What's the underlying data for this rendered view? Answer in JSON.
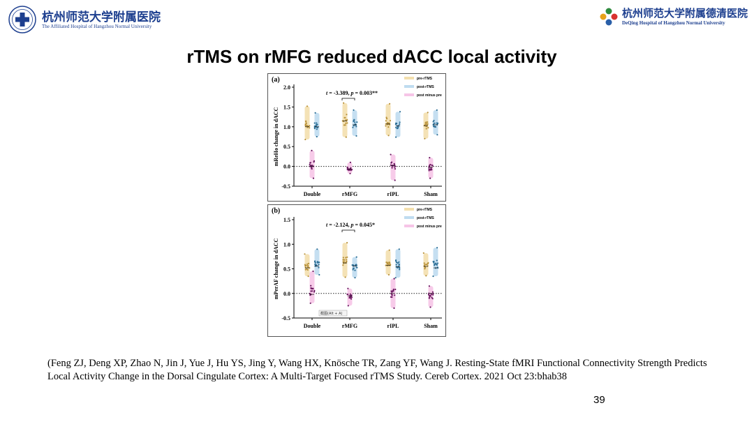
{
  "header": {
    "left_logo": {
      "name_cn": "杭州师范大学附属医院",
      "name_en": "The Affiliated Hospital of Hangzhou Normal University",
      "icon": "hospital-cross-seal-icon",
      "color": "#1d3f8f"
    },
    "right_logo": {
      "name_cn": "杭州师范大学附属德清医院",
      "name_en": "DeQing Hospital of Hangzhou Normal University",
      "icon": "flower-emblem-icon",
      "color": "#1d3f8f"
    }
  },
  "slide": {
    "title": "rTMS on rMFG reduced dACC local activity",
    "citation": "(Feng ZJ, Deng XP, Zhao N, Jin J, Yue J, Hu YS, Jing Y, Wang HX, Knösche TR, Zang YF, Wang J. Resting-State fMRI Functional Connectivity Strength Predicts Local Activity Change in the Dorsal Cingulate Cortex: A Multi-Target Focused rTMS Study. Cereb Cortex. 2021 Oct 23:bhab38",
    "page_number": "39",
    "tooltip": "截图(Alt + A)"
  },
  "colors": {
    "pre": "#b9923a",
    "post": "#2c6f96",
    "diff": "#6b1760",
    "pre_fill": "#f3dfae",
    "post_fill": "#bfdcf0",
    "diff_fill": "#f6c5e7"
  },
  "chart_data": [
    {
      "type": "scatter",
      "panel": "(a)",
      "ylabel": "mReHo change in dACC",
      "categories": [
        "Double",
        "rMFG",
        "rIPL",
        "Sham"
      ],
      "ylim": [
        -0.5,
        2.0
      ],
      "yticks": [
        "2.0",
        "1.5",
        "1.0",
        "0.5",
        "0.0",
        "-0.5"
      ],
      "reference_line": 0,
      "annotation": {
        "t": "-3.389",
        "p": "0.003**",
        "category": "rMFG"
      },
      "legend": [
        "pre-rTMS",
        "post-rTMS",
        "post minus pre"
      ],
      "legend_position": "top-right",
      "series": [
        {
          "name": "pre-rTMS",
          "ranges": [
            [
              0.68,
              1.52
            ],
            [
              0.74,
              1.6
            ],
            [
              0.78,
              1.58
            ],
            [
              0.7,
              1.36
            ]
          ],
          "medians": [
            1.0,
            1.15,
            1.07,
            1.03
          ]
        },
        {
          "name": "post-rTMS",
          "ranges": [
            [
              0.75,
              1.35
            ],
            [
              0.77,
              1.42
            ],
            [
              0.74,
              1.38
            ],
            [
              0.8,
              1.42
            ]
          ],
          "medians": [
            1.0,
            1.05,
            1.02,
            1.05
          ]
        },
        {
          "name": "post minus pre",
          "ranges": [
            [
              -0.3,
              0.4
            ],
            [
              -0.18,
              0.1
            ],
            [
              -0.35,
              0.3
            ],
            [
              -0.3,
              0.22
            ]
          ],
          "medians": [
            0.0,
            -0.07,
            0.02,
            -0.02
          ]
        }
      ]
    },
    {
      "type": "scatter",
      "panel": "(b)",
      "ylabel": "mPerAF change in dACC",
      "categories": [
        "Double",
        "rMFG",
        "rIPL",
        "Sham"
      ],
      "ylim": [
        -0.5,
        1.5
      ],
      "yticks": [
        "1.5",
        "1.0",
        "0.5",
        "0.0",
        "-0.5"
      ],
      "reference_line": 0,
      "annotation": {
        "t": "-2.124",
        "p": "0.045*",
        "category": "rMFG"
      },
      "legend": [
        "pre-rTMS",
        "post-rTMS",
        "post minus pre"
      ],
      "legend_position": "top-right",
      "series": [
        {
          "name": "pre-rTMS",
          "ranges": [
            [
              0.35,
              0.8
            ],
            [
              0.33,
              1.03
            ],
            [
              0.38,
              0.88
            ],
            [
              0.36,
              0.82
            ]
          ],
          "medians": [
            0.52,
            0.62,
            0.57,
            0.55
          ]
        },
        {
          "name": "post-rTMS",
          "ranges": [
            [
              0.38,
              0.9
            ],
            [
              0.32,
              0.74
            ],
            [
              0.32,
              0.9
            ],
            [
              0.35,
              0.93
            ]
          ],
          "medians": [
            0.56,
            0.56,
            0.54,
            0.52
          ]
        },
        {
          "name": "post minus pre",
          "ranges": [
            [
              -0.2,
              0.45
            ],
            [
              -0.25,
              0.1
            ],
            [
              -0.3,
              0.3
            ],
            [
              -0.28,
              0.15
            ]
          ],
          "medians": [
            -0.02,
            -0.05,
            0.0,
            0.0
          ]
        }
      ]
    }
  ]
}
